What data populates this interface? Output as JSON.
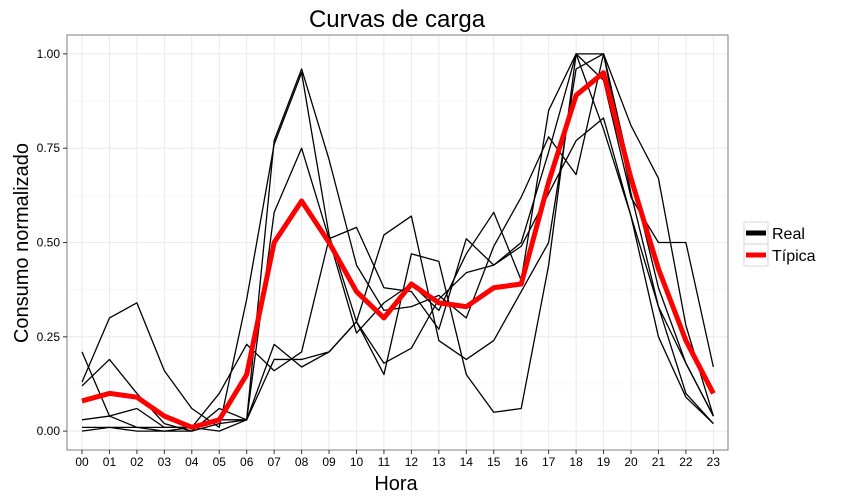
{
  "chart_data": {
    "type": "line",
    "title": "Curvas de carga",
    "xlabel": "Hora",
    "ylabel": "Consumo normalizado",
    "categories": [
      "00",
      "01",
      "02",
      "03",
      "04",
      "05",
      "06",
      "07",
      "08",
      "09",
      "10",
      "11",
      "12",
      "13",
      "14",
      "15",
      "16",
      "17",
      "18",
      "19",
      "20",
      "21",
      "22",
      "23"
    ],
    "ylim": [
      -0.05,
      1.05
    ],
    "yticks": [
      0.0,
      0.25,
      0.5,
      0.75,
      1.0
    ],
    "ytick_labels": [
      "0.00",
      "0.25",
      "0.50",
      "0.75",
      "1.00"
    ],
    "grid": true,
    "legend_position": "right",
    "legend": [
      {
        "label": "Real",
        "color": "#000000"
      },
      {
        "label": "Típica",
        "color": "#ff0000"
      }
    ],
    "series": [
      {
        "group": "Real",
        "color": "#000000",
        "values": [
          0.21,
          0.04,
          0.06,
          0.01,
          0.01,
          0.1,
          0.23,
          0.16,
          0.21,
          0.51,
          0.54,
          0.38,
          0.37,
          0.27,
          0.51,
          0.44,
          0.5,
          0.74,
          1.0,
          0.93,
          0.62,
          0.5,
          0.5,
          0.17
        ]
      },
      {
        "group": "Real",
        "color": "#000000",
        "values": [
          0.13,
          0.3,
          0.34,
          0.16,
          0.06,
          0.01,
          0.35,
          0.76,
          0.95,
          0.52,
          0.29,
          0.15,
          0.47,
          0.45,
          0.15,
          0.05,
          0.06,
          0.44,
          1.0,
          0.8,
          0.57,
          0.25,
          0.09,
          0.02
        ]
      },
      {
        "group": "Real",
        "color": "#000000",
        "values": [
          0.01,
          0.01,
          0.0,
          0.0,
          0.0,
          0.06,
          0.03,
          0.23,
          0.17,
          0.21,
          0.29,
          0.52,
          0.57,
          0.24,
          0.19,
          0.24,
          0.37,
          0.5,
          0.96,
          1.0,
          0.68,
          0.38,
          0.18,
          0.04
        ]
      },
      {
        "group": "Real",
        "color": "#000000",
        "values": [
          0.12,
          0.19,
          0.1,
          0.02,
          0.0,
          0.02,
          0.03,
          0.58,
          0.75,
          0.51,
          0.26,
          0.34,
          0.39,
          0.32,
          0.47,
          0.58,
          0.4,
          0.85,
          1.0,
          1.0,
          0.63,
          0.33,
          0.18,
          0.04
        ]
      },
      {
        "group": "Real",
        "color": "#000000",
        "values": [
          0.0,
          0.01,
          0.01,
          0.01,
          0.01,
          0.0,
          0.03,
          0.77,
          0.96,
          0.72,
          0.44,
          0.32,
          0.33,
          0.36,
          0.3,
          0.49,
          0.62,
          0.78,
          0.68,
          1.0,
          0.81,
          0.67,
          0.28,
          0.04
        ]
      },
      {
        "group": "Real",
        "color": "#000000",
        "values": [
          0.03,
          0.04,
          0.01,
          0.0,
          0.01,
          0.03,
          0.03,
          0.19,
          0.19,
          0.21,
          0.29,
          0.18,
          0.22,
          0.35,
          0.42,
          0.44,
          0.49,
          0.63,
          0.77,
          0.83,
          0.57,
          0.33,
          0.1,
          0.02
        ]
      },
      {
        "group": "Típica",
        "color": "#ff0000",
        "values": [
          0.08,
          0.1,
          0.09,
          0.04,
          0.01,
          0.03,
          0.15,
          0.5,
          0.61,
          0.5,
          0.37,
          0.3,
          0.39,
          0.34,
          0.33,
          0.38,
          0.39,
          0.66,
          0.89,
          0.95,
          0.67,
          0.43,
          0.24,
          0.1
        ]
      }
    ]
  }
}
